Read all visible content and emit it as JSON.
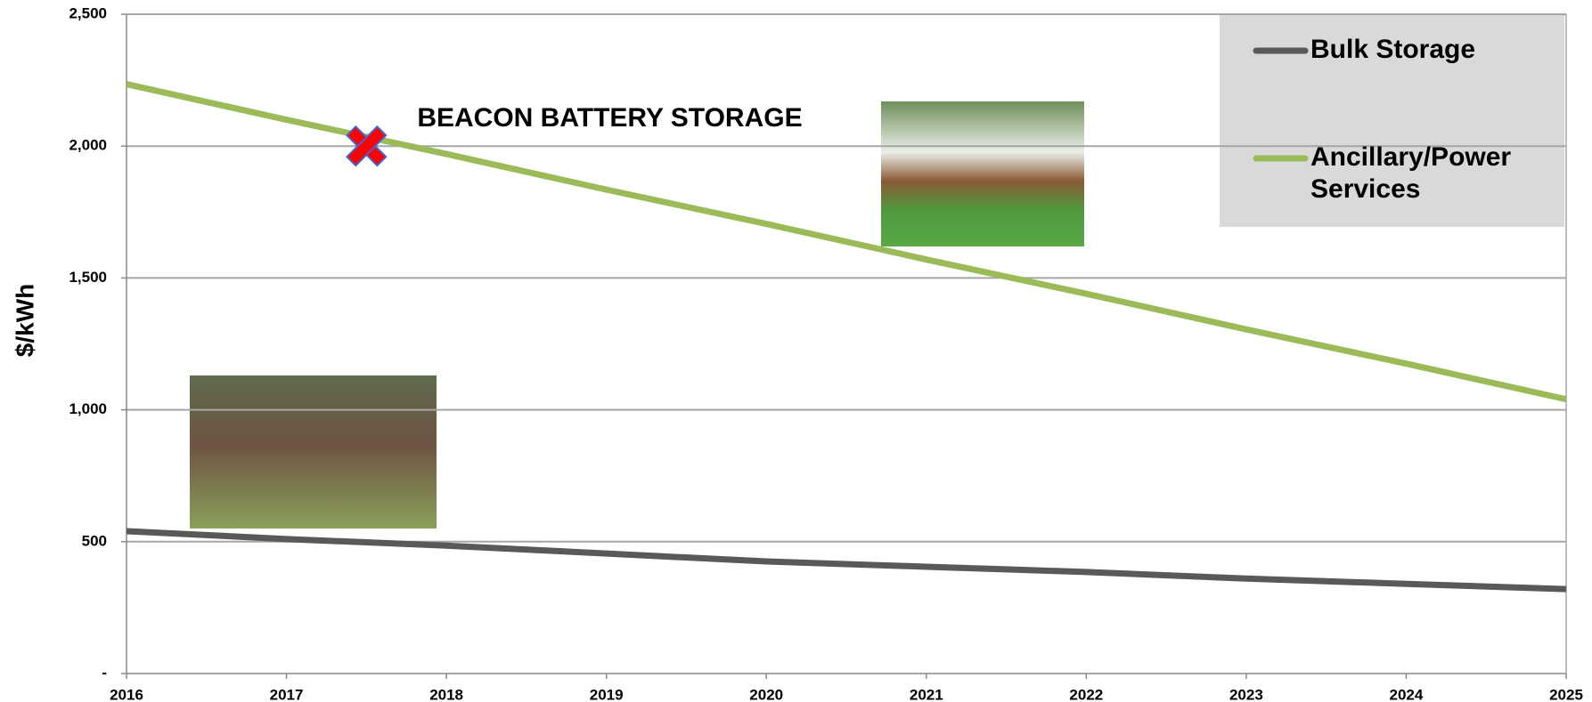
{
  "chart_data": {
    "type": "line",
    "y_label": "$/kWh",
    "x": [
      2016,
      2017,
      2018,
      2019,
      2020,
      2021,
      2022,
      2023,
      2024,
      2025
    ],
    "series": [
      {
        "name": "Bulk Storage",
        "color": "#595959",
        "values": [
          540,
          510,
          485,
          455,
          425,
          405,
          385,
          360,
          340,
          320
        ]
      },
      {
        "name": "Ancillary/Power Services",
        "color": "#9bbb59",
        "values": [
          2235,
          2100,
          1970,
          1835,
          1705,
          1570,
          1440,
          1305,
          1175,
          1040
        ]
      }
    ],
    "xlim": [
      2016,
      2025
    ],
    "xticks": [
      2016,
      2017,
      2018,
      2019,
      2020,
      2021,
      2022,
      2023,
      2024,
      2025
    ],
    "ylim": [
      0,
      2500
    ],
    "yticks": [
      {
        "value": 0,
        "label": "-"
      },
      500,
      {
        "value": 1000,
        "label": "1,000"
      },
      {
        "value": 1500,
        "label": "1,500"
      },
      {
        "value": 2000,
        "label": "2,000"
      },
      {
        "value": 2500,
        "label": "2,500"
      }
    ],
    "grid": true,
    "legend": "top-right",
    "annotation": {
      "text": "BEACON BATTERY STORAGE",
      "color": "#ff0000",
      "x": 2017.5,
      "y": 2000
    }
  }
}
